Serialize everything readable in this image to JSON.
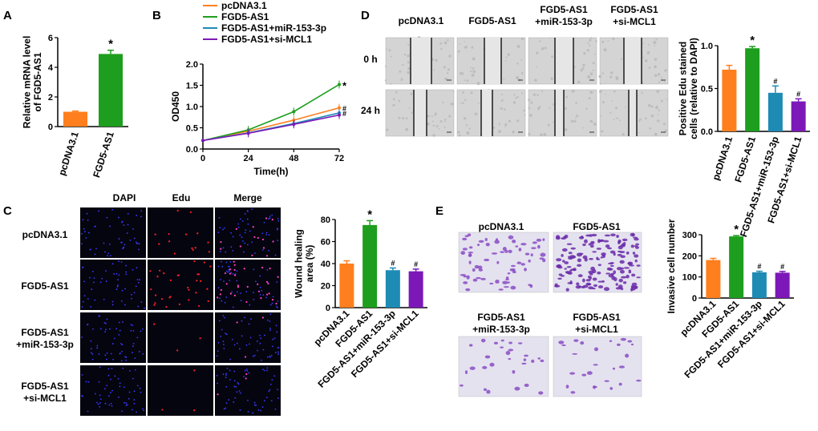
{
  "panel_letters": {
    "a": "A",
    "b": "B",
    "c": "C",
    "d": "D",
    "e": "E"
  },
  "colors": {
    "orange": "#ff7f1e",
    "green": "#1e9e1e",
    "teal": "#1e8bb5",
    "purple": "#7d18b8"
  },
  "significance": {
    "star": "*",
    "hash": "#"
  },
  "panel_d": {
    "column_labels": [
      "pcDNA3.1",
      "FGD5-AS1",
      "FGD5-AS1",
      "FGD5-AS1"
    ],
    "column_sublabels": [
      "",
      "",
      "+miR-153-3p",
      "+si-MCL1"
    ],
    "row_labels": [
      "0 h",
      "24 h"
    ]
  },
  "panel_c": {
    "column_labels": [
      "DAPI",
      "Edu",
      "Merge"
    ],
    "row_labels": [
      "pcDNA3.1",
      "FGD5-AS1",
      "FGD5-AS1",
      "FGD5-AS1"
    ],
    "row_sublabels": [
      "",
      "",
      "+miR-153-3p",
      "+si-MCL1"
    ]
  },
  "panel_e": {
    "image_labels": [
      "pcDNA3.1",
      "FGD5-AS1",
      "FGD5-AS1",
      "FGD5-AS1"
    ],
    "image_sublabels": [
      "",
      "",
      "+miR-153-3p",
      "+si-MCL1"
    ]
  },
  "chart_data": [
    {
      "id": "A",
      "type": "bar",
      "categories": [
        "pcDNA3.1",
        "FGD5-AS1"
      ],
      "values": [
        1.0,
        4.9
      ],
      "errors": [
        0.05,
        0.25
      ],
      "ylabel": "Relative mRNA level of FGD5-AS1",
      "ylim": [
        0,
        6
      ],
      "yticks": [
        "0",
        "2",
        "4",
        "6"
      ],
      "annotations": [
        "",
        "*"
      ]
    },
    {
      "id": "B",
      "type": "line",
      "x": [
        0,
        24,
        48,
        72
      ],
      "xticks": [
        "0",
        "24",
        "48",
        "72"
      ],
      "xlabel": "Time(h)",
      "ylabel": "OD450",
      "ylim": [
        0,
        2.0
      ],
      "yticks": [
        "0.0",
        "0.5",
        "1.0",
        "1.5",
        "2.0"
      ],
      "legend_position": "top-left",
      "series": [
        {
          "name": "pcDNA3.1",
          "values": [
            0.2,
            0.42,
            0.68,
            0.97
          ],
          "end_mark": "#"
        },
        {
          "name": "FGD5-AS1",
          "values": [
            0.2,
            0.45,
            0.88,
            1.52
          ],
          "end_mark": "*"
        },
        {
          "name": "FGD5-AS1+miR-153-3p",
          "values": [
            0.2,
            0.38,
            0.6,
            0.85
          ],
          "end_mark": "#"
        },
        {
          "name": "FGD5-AS1+si-MCL1",
          "values": [
            0.2,
            0.37,
            0.58,
            0.8
          ],
          "end_mark": ""
        }
      ]
    },
    {
      "id": "D",
      "type": "bar",
      "categories": [
        "pcDNA3.1",
        "FGD5-AS1",
        "FGD5-AS1+miR-153-3p",
        "FGD5-AS1+si-MCL1"
      ],
      "values": [
        0.72,
        0.97,
        0.45,
        0.35
      ],
      "errors": [
        0.05,
        0.02,
        0.08,
        0.03
      ],
      "ylabel": "Positive Edu stained cells (relative to DAPI)",
      "ylim": [
        0,
        1.0
      ],
      "yticks": [
        "0.0",
        "0.5",
        "1.0"
      ],
      "annotations": [
        "",
        "*",
        "#",
        "#"
      ]
    },
    {
      "id": "C",
      "type": "bar",
      "categories": [
        "pcDNA3.1",
        "FGD5-AS1",
        "FGD5-AS1+miR-153-3p",
        "FGD5-AS1+si-MCL1"
      ],
      "values": [
        40,
        75,
        34,
        33
      ],
      "errors": [
        2.5,
        4,
        2,
        2
      ],
      "ylabel": "Wound healing area (%)",
      "ylim": [
        0,
        80
      ],
      "yticks": [
        "0",
        "20",
        "40",
        "60",
        "80"
      ],
      "annotations": [
        "",
        "*",
        "#",
        "#"
      ]
    },
    {
      "id": "E",
      "type": "bar",
      "categories": [
        "pcDNA3.1",
        "FGD5-AS1",
        "FGD5-AS1+miR-153-3p",
        "FGD5-AS1+si-MCL1"
      ],
      "values": [
        180,
        292,
        122,
        120
      ],
      "errors": [
        8,
        4,
        5,
        6
      ],
      "ylabel": "Invasive cell number",
      "ylim": [
        0,
        300
      ],
      "yticks": [
        "0",
        "100",
        "200",
        "300"
      ],
      "annotations": [
        "",
        "*",
        "#",
        "#"
      ]
    }
  ]
}
